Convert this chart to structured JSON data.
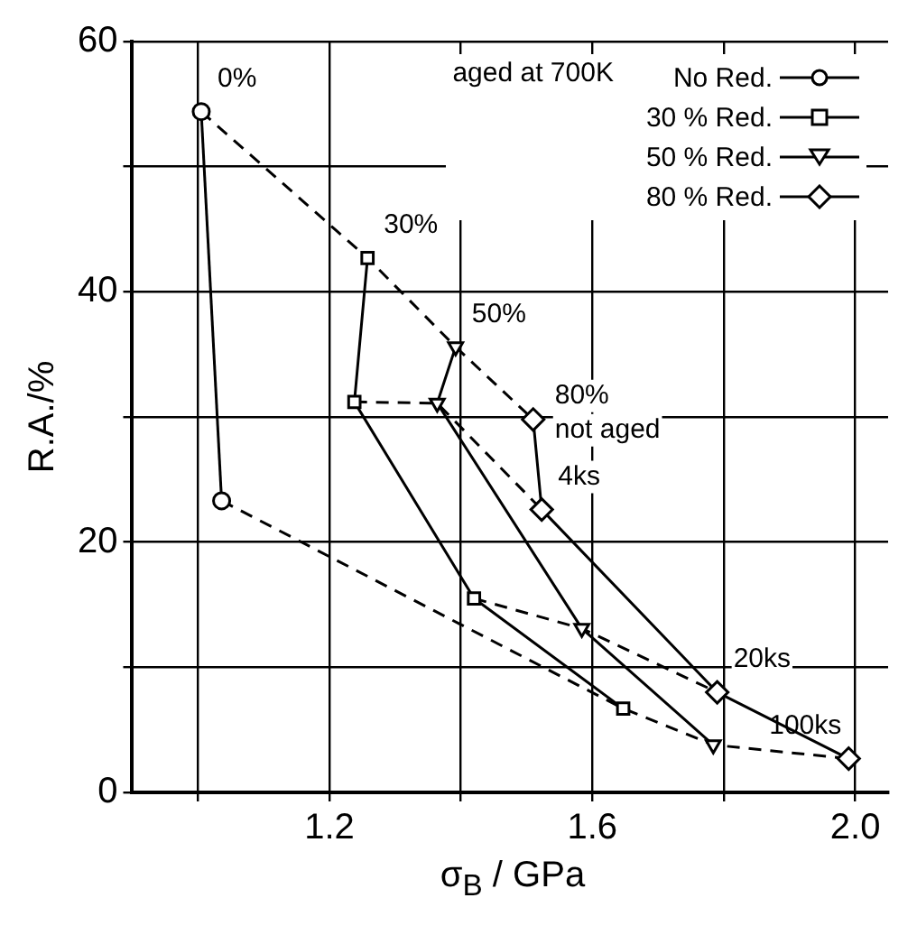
{
  "chart_data": {
    "type": "line",
    "xlabel": "σ$_{B}$ / GPa",
    "ylabel": "R.A./%",
    "legend_title": "aged at 700K",
    "legend": "top right",
    "grid": true,
    "xlim": [
      0.9,
      2.05
    ],
    "xticks": [
      {
        "value": 1.0,
        "label": null
      },
      1.2,
      {
        "value": 1.4,
        "label": null
      },
      1.6,
      {
        "value": 1.8,
        "label": null
      },
      {
        "value": 2.0,
        "label": "2.0"
      }
    ],
    "ylim": [
      0,
      60
    ],
    "yticks": [
      0,
      {
        "value": 10,
        "label": null
      },
      20,
      {
        "value": 30,
        "label": null
      },
      40,
      {
        "value": 50,
        "label": null
      },
      60
    ],
    "series": [
      {
        "name": "No Red.",
        "color": "#000000",
        "marker": "circle",
        "line_style": "solid",
        "x": [
          1.005,
          1.036
        ],
        "values": [
          54.4,
          23.3
        ]
      },
      {
        "name": "30 % Red.",
        "color": "#000000",
        "marker": "square",
        "line_style": "solid",
        "x": [
          1.258,
          1.238,
          1.42,
          1.647
        ],
        "values": [
          42.7,
          31.2,
          15.5,
          6.7
        ]
      },
      {
        "name": "50 % Red.",
        "color": "#000000",
        "marker": "triangle",
        "line_style": "solid",
        "x": [
          1.392,
          1.364,
          1.584,
          1.784
        ],
        "values": [
          35.6,
          31.1,
          13.1,
          3.8
        ]
      },
      {
        "name": "80 % Red.",
        "color": "#000000",
        "marker": "diamond",
        "line_style": "solid",
        "x": [
          1.51,
          1.523,
          1.79,
          1.99
        ],
        "values": [
          29.8,
          22.6,
          8.0,
          2.7
        ]
      },
      {
        "color": "#000000",
        "marker": "none",
        "line_style": "dashed",
        "x": [
          1.005,
          1.258,
          1.392,
          1.51
        ],
        "values": [
          54.4,
          42.7,
          35.6,
          29.8
        ]
      },
      {
        "color": "#000000",
        "marker": "none",
        "line_style": "dashed",
        "x": [
          1.238,
          1.364,
          1.523
        ],
        "values": [
          31.2,
          31.1,
          22.6
        ]
      },
      {
        "color": "#000000",
        "marker": "none",
        "line_style": "dashed",
        "x": [
          1.42,
          1.584,
          1.79
        ],
        "values": [
          15.5,
          13.1,
          8.0
        ]
      },
      {
        "color": "#000000",
        "marker": "none",
        "line_style": "dashed",
        "x": [
          1.036,
          1.647,
          1.784,
          1.99
        ],
        "values": [
          23.3,
          6.7,
          3.8,
          2.7
        ]
      }
    ],
    "annotations": [
      {
        "text": "0%",
        "x": 1.005,
        "y": 54.4
      },
      {
        "text": "30%",
        "x": 1.258,
        "y": 42.7
      },
      {
        "text": "50%",
        "x": 1.392,
        "y": 35.6
      },
      {
        "text": "80%\nnot aged",
        "x": 1.51,
        "y": 29.8
      },
      {
        "text": "4ks",
        "x": 1.523,
        "y": 22.6
      },
      {
        "text": "20ks",
        "x": 1.79,
        "y": 8.0
      },
      {
        "text": "100ks",
        "x": 1.99,
        "y": 2.7
      }
    ]
  }
}
